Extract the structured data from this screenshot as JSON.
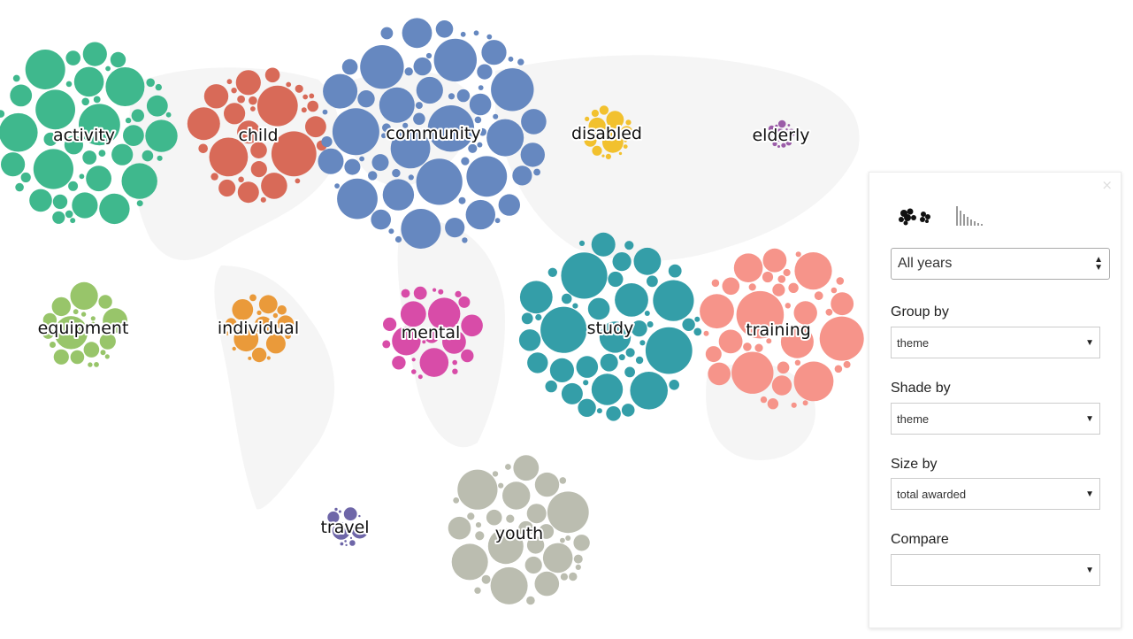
{
  "chart_data": {
    "type": "packed-bubble clusters",
    "title": "",
    "legend": "none",
    "clusters": [
      {
        "label": "activity",
        "color": "#3fb88d",
        "relative_total": 1.0
      },
      {
        "label": "child",
        "color": "#d86a58",
        "relative_total": 0.55
      },
      {
        "label": "community",
        "color": "#6688c0",
        "relative_total": 1.6
      },
      {
        "label": "disabled",
        "color": "#f2c12e",
        "relative_total": 0.07
      },
      {
        "label": "elderly",
        "color": "#9b5ca8",
        "relative_total": 0.01
      },
      {
        "label": "equipment",
        "color": "#98c56a",
        "relative_total": 0.2
      },
      {
        "label": "individual",
        "color": "#ea9a3a",
        "relative_total": 0.13
      },
      {
        "label": "mental",
        "color": "#d84ca8",
        "relative_total": 0.28
      },
      {
        "label": "study",
        "color": "#349ea8",
        "relative_total": 1.0
      },
      {
        "label": "training",
        "color": "#f6948a",
        "relative_total": 0.8
      },
      {
        "label": "travel",
        "color": "#6e66a8",
        "relative_total": 0.04
      },
      {
        "label": "youth",
        "color": "#bbbdb0",
        "relative_total": 0.65
      }
    ]
  },
  "panel": {
    "close_label": "×",
    "views": [
      {
        "name": "bubble-view",
        "icon": "bubbles-icon"
      },
      {
        "name": "bar-view",
        "icon": "bar-chart-icon"
      }
    ],
    "years": {
      "value": "All years"
    },
    "group_by": {
      "label": "Group by",
      "value": "theme"
    },
    "shade_by": {
      "label": "Shade by",
      "value": "theme"
    },
    "size_by": {
      "label": "Size by",
      "value": "total awarded"
    },
    "compare": {
      "label": "Compare",
      "value": ""
    }
  }
}
